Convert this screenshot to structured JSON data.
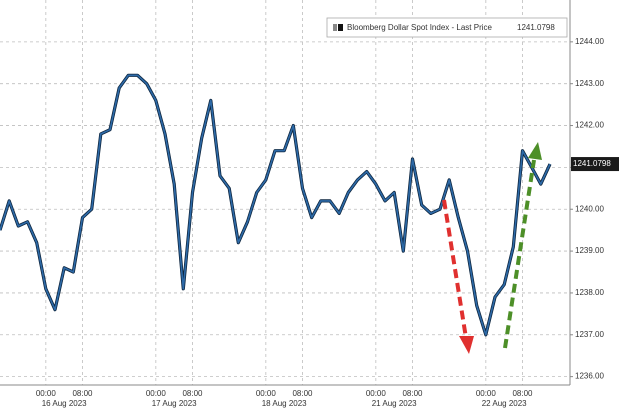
{
  "chart_data": {
    "type": "line",
    "categories": [
      null,
      null,
      null,
      null,
      null,
      "00:00",
      null,
      null,
      null,
      "08:00",
      null,
      null,
      null,
      null,
      null,
      null,
      null,
      "00:00",
      null,
      null,
      null,
      "08:00",
      null,
      null,
      null,
      null,
      null,
      null,
      null,
      "00:00",
      null,
      null,
      null,
      "08:00",
      null,
      null,
      null,
      null,
      null,
      null,
      null,
      "00:00",
      null,
      null,
      null,
      "08:00",
      null,
      null,
      null,
      null,
      null,
      null,
      null,
      "00:00",
      null,
      null,
      null,
      "08:00",
      null,
      null,
      null
    ],
    "dates": [
      "16 Aug 2023",
      "17 Aug 2023",
      "18 Aug 2023",
      "21 Aug 2023",
      "22 Aug 2023"
    ],
    "series": [
      {
        "name": "Bloomberg Dollar Spot Index - Last Price",
        "color": "#2d6aa8",
        "values": [
          1239.5,
          1240.2,
          1239.6,
          1239.7,
          1239.2,
          1238.1,
          1237.6,
          1238.6,
          1238.5,
          1239.8,
          1240.0,
          1241.8,
          1241.9,
          1242.9,
          1243.2,
          1243.2,
          1243.0,
          1242.6,
          1241.8,
          1240.6,
          1238.1,
          1240.4,
          1241.7,
          1242.6,
          1240.8,
          1240.5,
          1239.2,
          1239.7,
          1240.4,
          1240.7,
          1241.4,
          1241.4,
          1242.0,
          1240.5,
          1239.8,
          1240.2,
          1240.2,
          1239.9,
          1240.4,
          1240.7,
          1240.9,
          1240.6,
          1240.2,
          1240.4,
          1239.0,
          1241.2,
          1240.1,
          1239.9,
          1240.0,
          1240.7,
          1239.8,
          1239.0,
          1237.7,
          1237.0,
          1237.9,
          1238.2,
          1239.1,
          1241.4,
          1241.0,
          1240.6,
          1241.0798
        ]
      }
    ],
    "last_price": 1241.0798,
    "ylim": [
      1235.8,
      1245
    ],
    "yticks": [
      {
        "value": 1236,
        "label": "1236.00"
      },
      {
        "value": 1237,
        "label": "1237.00"
      },
      {
        "value": 1238,
        "label": "1238.00"
      },
      {
        "value": 1239,
        "label": "1239.00"
      },
      {
        "value": 1240,
        "label": "1240.00"
      },
      {
        "value": 1241,
        "label": "1241.00"
      },
      {
        "value": 1242,
        "label": "1242.00"
      },
      {
        "value": 1243,
        "label": "1243.00"
      },
      {
        "value": 1244,
        "label": "1244.00"
      }
    ],
    "grid": true
  }
}
